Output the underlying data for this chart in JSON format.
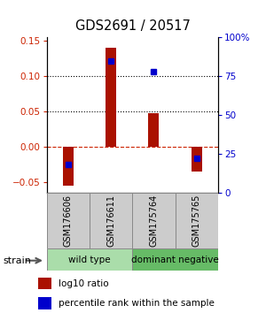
{
  "title": "GDS2691 / 20517",
  "samples": [
    "GSM176606",
    "GSM176611",
    "GSM175764",
    "GSM175765"
  ],
  "log10_ratio": [
    -0.055,
    0.14,
    0.048,
    -0.035
  ],
  "percentile_rank_pct": [
    18,
    85,
    78,
    22
  ],
  "groups": [
    {
      "name": "wild type",
      "samples": [
        0,
        1
      ],
      "color": "#aaddaa"
    },
    {
      "name": "dominant negative",
      "samples": [
        2,
        3
      ],
      "color": "#66bb66"
    }
  ],
  "group_label": "strain",
  "ylim": [
    -0.065,
    0.155
  ],
  "yticks_left": [
    -0.05,
    0.0,
    0.05,
    0.1,
    0.15
  ],
  "yticks_right": [
    0,
    25,
    50,
    75,
    100
  ],
  "bar_color": "#aa1100",
  "dot_color": "#0000cc",
  "dotted_lines": [
    0.05,
    0.1
  ],
  "axis_color_left": "#cc2200",
  "axis_color_right": "#0000cc",
  "legend_red_label": "log10 ratio",
  "legend_blue_label": "percentile rank within the sample",
  "bar_width": 0.25,
  "sample_box_color": "#cccccc",
  "sample_box_edge": "#888888"
}
